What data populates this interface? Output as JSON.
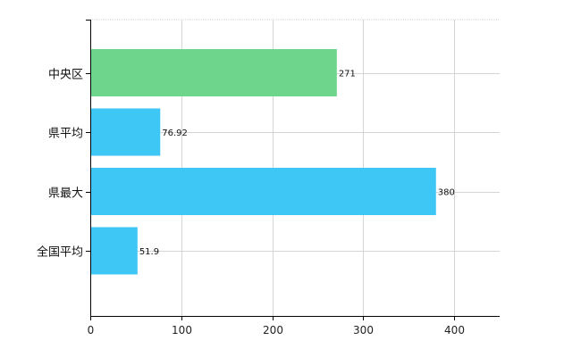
{
  "chart_data": {
    "type": "bar",
    "orientation": "horizontal",
    "categories": [
      "中央区",
      "県平均",
      "県最大",
      "全国平均"
    ],
    "values": [
      271,
      76.92,
      380,
      51.9
    ],
    "value_labels": [
      "271",
      "76.92",
      "380",
      "51.9"
    ],
    "xlim": [
      0,
      450
    ],
    "x_ticks": [
      0,
      100,
      200,
      300,
      400
    ],
    "x_tick_labels": [
      "0",
      "100",
      "200",
      "300",
      "400"
    ],
    "grid": true,
    "title": "",
    "xlabel": "",
    "ylabel": "",
    "colors": {
      "highlight": "#6dd58c",
      "default": "#3ec7f5",
      "grid": "#d4d4d4",
      "axis": "#000000"
    },
    "bar_colors": [
      "#6dd58c",
      "#3ec7f5",
      "#3ec7f5",
      "#3ec7f5"
    ]
  }
}
